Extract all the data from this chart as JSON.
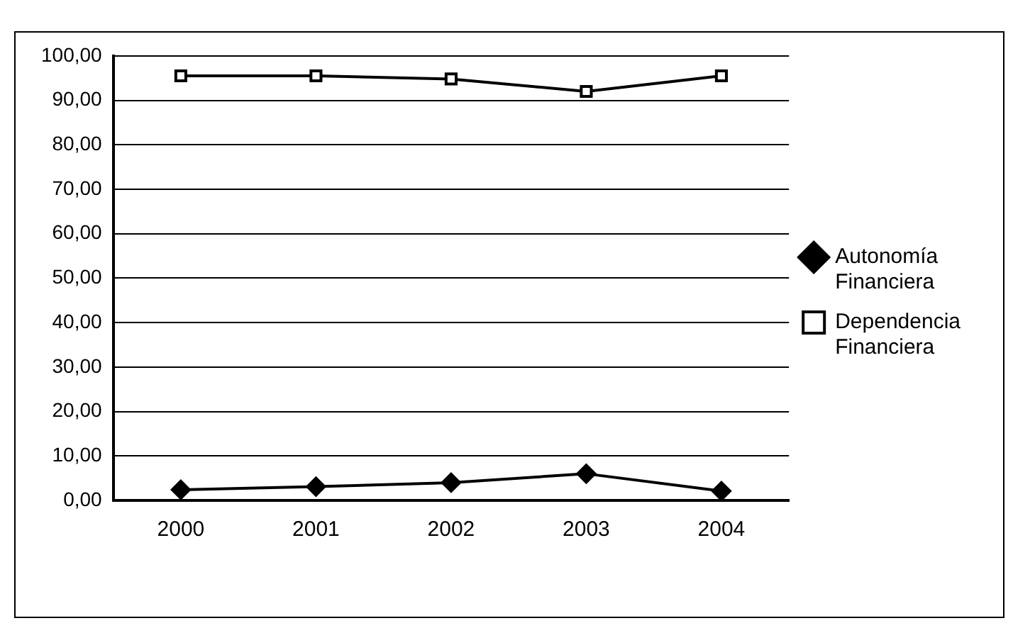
{
  "chart_data": {
    "type": "line",
    "categories": [
      "2000",
      "2001",
      "2002",
      "2003",
      "2004"
    ],
    "series": [
      {
        "name": "Autonomía Financiera",
        "color": "#000000",
        "marker": "diamond",
        "values": [
          2.4,
          3.1,
          4.0,
          6.0,
          2.1
        ]
      },
      {
        "name": "Dependencia Financiera",
        "color": "#000000",
        "marker": "square",
        "values": [
          95.5,
          95.5,
          94.8,
          92.0,
          95.5
        ]
      }
    ],
    "ylim": [
      0,
      100
    ],
    "yticks": [
      {
        "value": 0,
        "label": "0,00"
      },
      {
        "value": 10,
        "label": "10,00"
      },
      {
        "value": 20,
        "label": "20,00"
      },
      {
        "value": 30,
        "label": "30,00"
      },
      {
        "value": 40,
        "label": "40,00"
      },
      {
        "value": 50,
        "label": "50,00"
      },
      {
        "value": 60,
        "label": "60,00"
      },
      {
        "value": 70,
        "label": "70,00"
      },
      {
        "value": 80,
        "label": "80,00"
      },
      {
        "value": 90,
        "label": "90,00"
      },
      {
        "value": 100,
        "label": "100,00"
      }
    ],
    "grid": "y",
    "legend": "right"
  }
}
